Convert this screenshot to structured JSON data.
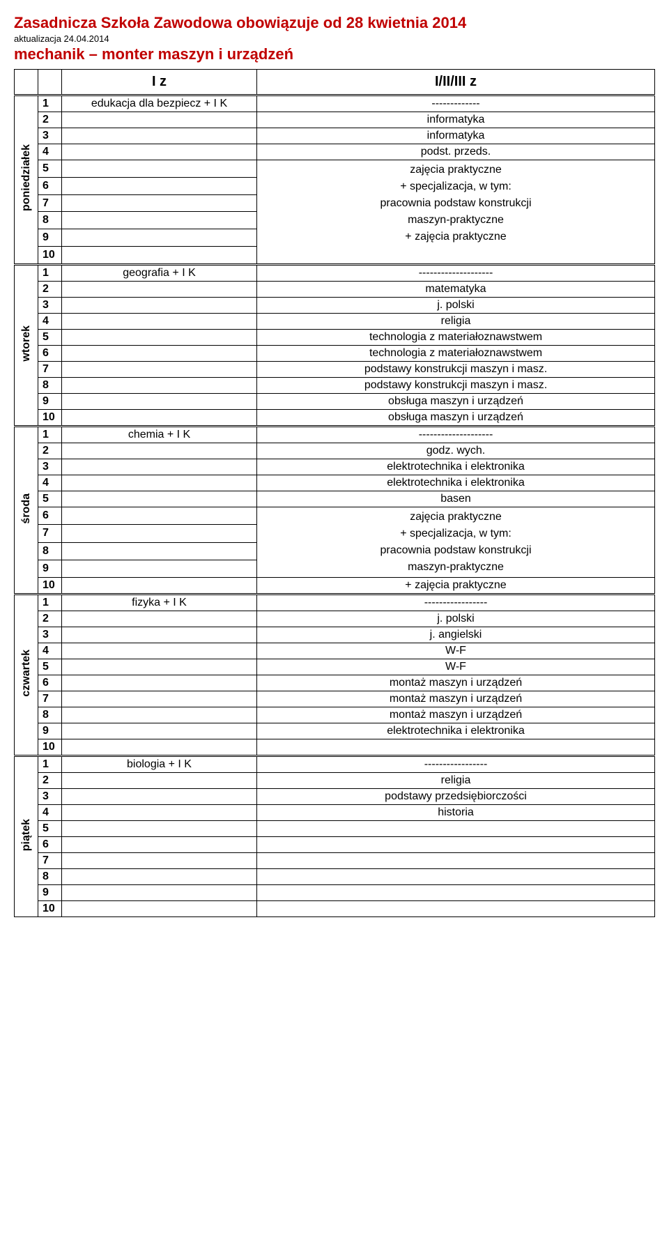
{
  "header": {
    "title_main": "Zasadnicza Szkoła Zawodowa  obowiązuje od 28 kwietnia 2014",
    "title_sub": "aktualizacja 24.04.2014",
    "title_class": "mechanik – monter maszyn i urządzeń"
  },
  "columns": {
    "left": "I z",
    "right": "I/II/III z"
  },
  "colors": {
    "title": "#c00000",
    "text": "#000000",
    "border": "#000000",
    "background": "#ffffff"
  },
  "fonts": {
    "title_size": 22,
    "sub_size": 13,
    "body_size": 16,
    "header_size": 20
  },
  "days": [
    {
      "name": "poniedziałek",
      "rows": [
        {
          "n": "1",
          "subj": "edukacja dla bezpiecz + I K",
          "right": "-------------"
        },
        {
          "n": "2",
          "subj": "",
          "right": "informatyka"
        },
        {
          "n": "3",
          "subj": "",
          "right": "informatyka"
        },
        {
          "n": "4",
          "subj": "",
          "right": "podst. przeds."
        },
        {
          "n": "5",
          "subj": "",
          "right_merge_start": true,
          "right_merge_rows": 6,
          "right_lines": [
            "zajęcia praktyczne",
            "+ specjalizacja, w tym:",
            "pracownia podstaw konstrukcji",
            "maszyn-praktyczne",
            "+ zajęcia praktyczne",
            ""
          ]
        },
        {
          "n": "6",
          "subj": ""
        },
        {
          "n": "7",
          "subj": ""
        },
        {
          "n": "8",
          "subj": ""
        },
        {
          "n": "9",
          "subj": ""
        },
        {
          "n": "10",
          "subj": ""
        }
      ]
    },
    {
      "name": "wtorek",
      "rows": [
        {
          "n": "1",
          "subj": "geografia + I K",
          "right": "--------------------"
        },
        {
          "n": "2",
          "subj": "",
          "right": "matematyka"
        },
        {
          "n": "3",
          "subj": "",
          "right": "j. polski"
        },
        {
          "n": "4",
          "subj": "",
          "right": "religia"
        },
        {
          "n": "5",
          "subj": "",
          "right": "technologia z materiałoznawstwem"
        },
        {
          "n": "6",
          "subj": "",
          "right": "technologia z materiałoznawstwem"
        },
        {
          "n": "7",
          "subj": "",
          "right": "podstawy konstrukcji maszyn i masz."
        },
        {
          "n": "8",
          "subj": "",
          "right": "podstawy konstrukcji maszyn i masz."
        },
        {
          "n": "9",
          "subj": "",
          "right": "obsługa maszyn i urządzeń"
        },
        {
          "n": "10",
          "subj": "",
          "right": "obsługa maszyn i urządzeń"
        }
      ]
    },
    {
      "name": "środa",
      "rows": [
        {
          "n": "1",
          "subj": "chemia + I K",
          "right": "--------------------"
        },
        {
          "n": "2",
          "subj": "",
          "right": "godz. wych."
        },
        {
          "n": "3",
          "subj": "",
          "right": "elektrotechnika i elektronika"
        },
        {
          "n": "4",
          "subj": "",
          "right": "elektrotechnika i elektronika"
        },
        {
          "n": "5",
          "subj": "",
          "right": "basen"
        },
        {
          "n": "6",
          "subj": "",
          "right_merge_start": true,
          "right_merge_rows": 4,
          "right_lines": [
            "zajęcia praktyczne",
            "+ specjalizacja, w tym:",
            "pracownia podstaw konstrukcji",
            "maszyn-praktyczne"
          ]
        },
        {
          "n": "7",
          "subj": ""
        },
        {
          "n": "8",
          "subj": ""
        },
        {
          "n": "9",
          "subj": ""
        },
        {
          "n": "10",
          "subj": "",
          "right": "+ zajęcia praktyczne"
        }
      ]
    },
    {
      "name": "czwartek",
      "rows": [
        {
          "n": "1",
          "subj": "fizyka + I K",
          "right": "-----------------"
        },
        {
          "n": "2",
          "subj": "",
          "right": "j. polski"
        },
        {
          "n": "3",
          "subj": "",
          "right": "j. angielski"
        },
        {
          "n": "4",
          "subj": "",
          "right": "W-F"
        },
        {
          "n": "5",
          "subj": "",
          "right": "W-F"
        },
        {
          "n": "6",
          "subj": "",
          "right": "montaż maszyn i urządzeń"
        },
        {
          "n": "7",
          "subj": "",
          "right": "montaż maszyn i urządzeń"
        },
        {
          "n": "8",
          "subj": "",
          "right": "montaż maszyn i urządzeń"
        },
        {
          "n": "9",
          "subj": "",
          "right": "elektrotechnika i elektronika"
        },
        {
          "n": "10",
          "subj": "",
          "right": ""
        }
      ]
    },
    {
      "name": "piątek",
      "rows": [
        {
          "n": "1",
          "subj": "biologia + I K",
          "right": "-----------------"
        },
        {
          "n": "2",
          "subj": "",
          "right": "religia"
        },
        {
          "n": "3",
          "subj": "",
          "right": "podstawy przedsiębiorczości"
        },
        {
          "n": "4",
          "subj": "",
          "right": "historia"
        },
        {
          "n": "5",
          "subj": "",
          "right": ""
        },
        {
          "n": "6",
          "subj": "",
          "right": ""
        },
        {
          "n": "7",
          "subj": "",
          "right": ""
        },
        {
          "n": "8",
          "subj": "",
          "right": ""
        },
        {
          "n": "9",
          "subj": "",
          "right": ""
        },
        {
          "n": "10",
          "subj": "",
          "right": ""
        }
      ]
    }
  ]
}
